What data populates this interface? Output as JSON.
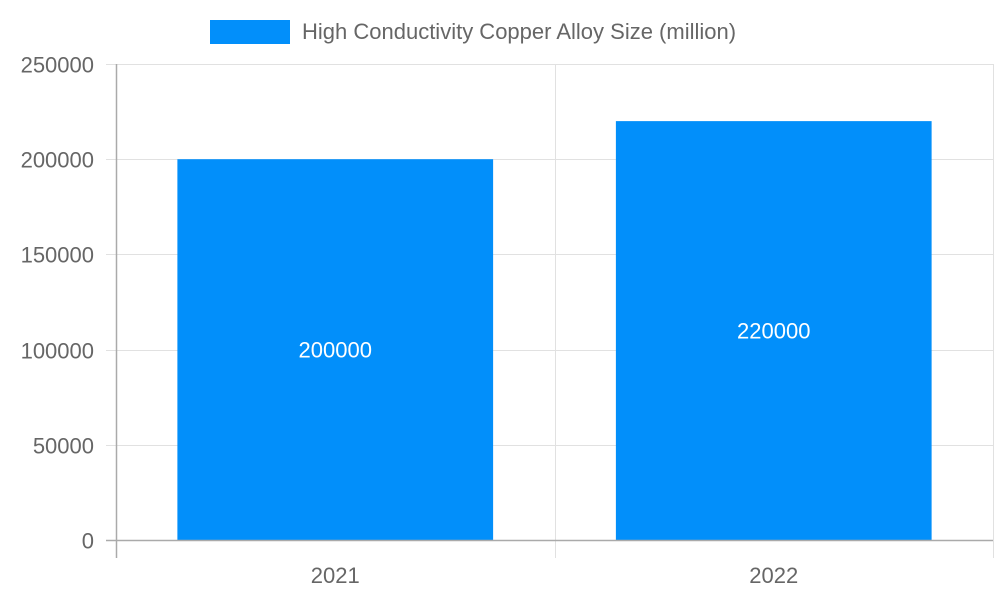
{
  "chart_data": {
    "type": "bar",
    "title": "",
    "categories": [
      "2021",
      "2022"
    ],
    "series": [
      {
        "name": "High Conductivity Copper Alloy Size (million)",
        "values": [
          200000,
          220000
        ],
        "color": "#028ffa"
      }
    ],
    "xlabel": "",
    "ylabel": "",
    "ylim": [
      0,
      250000
    ],
    "yticks": [
      0,
      50000,
      100000,
      150000,
      200000,
      250000
    ],
    "ytick_labels": [
      "0",
      "50000",
      "100000",
      "150000",
      "200000",
      "250000"
    ],
    "grid": true,
    "legend_position": "top",
    "data_labels": [
      "200000",
      "220000"
    ]
  },
  "legend": {
    "label": "High Conductivity Copper Alloy Size (million)",
    "color": "#028ffa"
  },
  "colors": {
    "bar": "#028ffa",
    "grid": "#e1e1e1",
    "axis": "#aaaaaa",
    "text": "#666666"
  }
}
